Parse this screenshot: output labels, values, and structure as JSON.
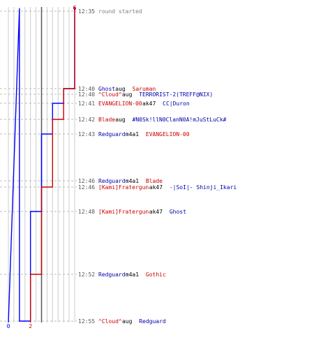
{
  "chart_data": {
    "type": "line",
    "title": "",
    "xlabel": "",
    "ylabel": "",
    "score_axis": {
      "min": 0,
      "max": 6
    },
    "series": [
      {
        "color": "#0000ff",
        "start_label": "6",
        "end_label": "0",
        "steps": [
          {
            "time_index": 0,
            "value": 6
          },
          {
            "time_index": 1,
            "value": 5
          },
          {
            "time_index": 3,
            "value": 4
          },
          {
            "time_index": 5,
            "value": 3
          },
          {
            "time_index": 8,
            "value": 2
          },
          {
            "time_index": 10,
            "value": 1
          },
          {
            "time_index": 12,
            "value": 0
          }
        ]
      },
      {
        "color": "#cc0000",
        "start_label": "6",
        "end_label": "2",
        "steps": [
          {
            "time_index": 0,
            "value": 6
          },
          {
            "time_index": 1,
            "value": 5
          },
          {
            "time_index": 4,
            "value": 4
          },
          {
            "time_index": 7,
            "value": 3
          },
          {
            "time_index": 9,
            "value": 2
          }
        ]
      }
    ],
    "events": [
      {
        "time": "12:35",
        "parts": [
          {
            "text": "round started",
            "color": "gray"
          }
        ]
      },
      {
        "time": "12:40",
        "parts": [
          {
            "text": "Ghost",
            "color": "blue"
          },
          {
            "text": " aug ",
            "color": "black"
          },
          {
            "text": "Saruman",
            "color": "red"
          }
        ]
      },
      {
        "time": "12:40",
        "parts": [
          {
            "text": "^Cloud^",
            "color": "red"
          },
          {
            "text": " aug ",
            "color": "black"
          },
          {
            "text": "TERRORIST-2(TREFF@NIX)",
            "color": "blue"
          }
        ]
      },
      {
        "time": "12:41",
        "parts": [
          {
            "text": "EVANGELION-00",
            "color": "red"
          },
          {
            "text": " ak47 ",
            "color": "black"
          },
          {
            "text": "CC|Duron",
            "color": "blue"
          }
        ]
      },
      {
        "time": "12:42",
        "parts": [
          {
            "text": "Blade",
            "color": "red"
          },
          {
            "text": " aug ",
            "color": "black"
          },
          {
            "text": "#N0Sk!llN0ClanN0A!mJuStLuCk#",
            "color": "blue"
          }
        ]
      },
      {
        "time": "12:43",
        "parts": [
          {
            "text": "Redguard",
            "color": "blue"
          },
          {
            "text": " m4a1 ",
            "color": "black"
          },
          {
            "text": "EVANGELION-00",
            "color": "red"
          }
        ]
      },
      {
        "time": "12:46",
        "parts": [
          {
            "text": "Redguard",
            "color": "blue"
          },
          {
            "text": " m4a1 ",
            "color": "black"
          },
          {
            "text": "Blade",
            "color": "red"
          }
        ]
      },
      {
        "time": "12:46",
        "parts": [
          {
            "text": "[Kami]Fratergun",
            "color": "red"
          },
          {
            "text": " ak47 ",
            "color": "black"
          },
          {
            "text": "-|SoI|- Shinji_Ikari",
            "color": "blue"
          }
        ]
      },
      {
        "time": "12:48",
        "parts": [
          {
            "text": "[Kami]Fratergun",
            "color": "red"
          },
          {
            "text": " ak47 ",
            "color": "black"
          },
          {
            "text": "Ghost",
            "color": "blue"
          }
        ]
      },
      {
        "time": "12:52",
        "parts": [
          {
            "text": "Redguard",
            "color": "blue"
          },
          {
            "text": " m4a1 ",
            "color": "black"
          },
          {
            "text": "Gothic",
            "color": "red"
          }
        ]
      },
      {
        "time": "12:55",
        "parts": [
          {
            "text": "^Cloud^",
            "color": "red"
          },
          {
            "text": " aug ",
            "color": "black"
          },
          {
            "text": "Redguard",
            "color": "blue"
          }
        ]
      }
    ]
  },
  "colors": {
    "blue_series": "#0000ff",
    "red_series": "#cc0000",
    "blue_text": "#0000aa",
    "red_text": "#cc0000",
    "gray_text": "#808080",
    "grid": "#cccccc",
    "zero_line": "#555555"
  }
}
